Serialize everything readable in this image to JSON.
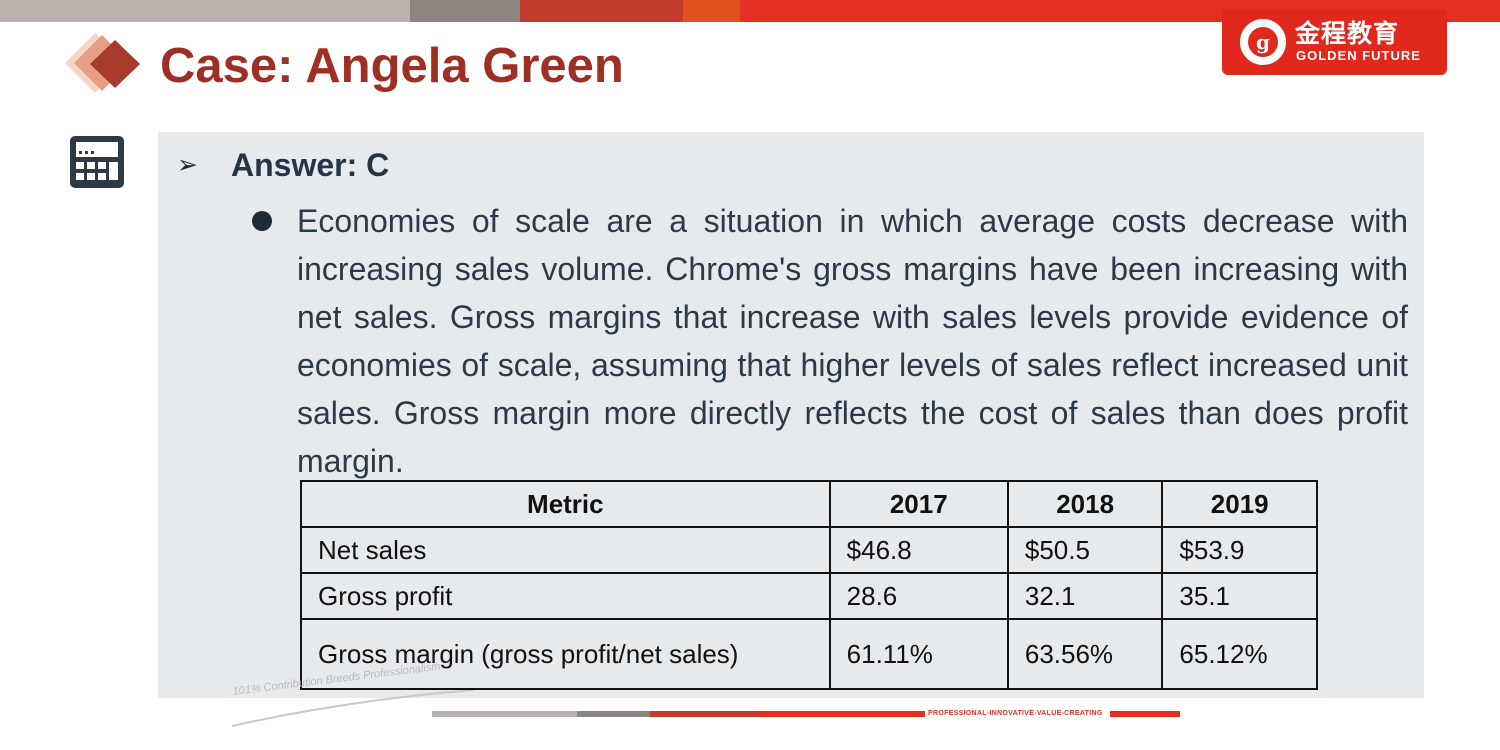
{
  "slide": {
    "title": "Case: Angela Green",
    "answer": "Answer: C",
    "paragraph": "Economies of scale are a situation in which average costs decrease with increasing sales volume. Chrome's gross margins have been increasing with net sales. Gross margins that increase with sales levels provide evidence of economies of scale, assuming that higher levels of sales reflect increased unit sales. Gross margin more directly reflects the cost of sales than does profit margin."
  },
  "logo": {
    "chinese": "金程教育",
    "english": "GOLDEN FUTURE"
  },
  "table": {
    "headers": [
      "Metric",
      "2017",
      "2018",
      "2019"
    ],
    "rows": [
      [
        "Net sales",
        "$46.8",
        "$50.5",
        "$53.9"
      ],
      [
        "Gross profit",
        "28.6",
        "32.1",
        "35.1"
      ],
      [
        "Gross margin (gross profit/net sales)",
        "61.11%",
        "63.56%",
        "65.12%"
      ]
    ]
  },
  "footer": {
    "tagline": "101% Contribution Breeds Professionalism",
    "slogan": "PROFESSIONAL-INNOVATIVE-VALUE-CREATING"
  },
  "colors": {
    "title_red": "#9e2f24",
    "brand_red": "#e0291c",
    "content_bg": "#e6eaed",
    "text_dark": "#2a3a4a"
  },
  "icons": [
    "diamond-title-icon",
    "calculator-icon",
    "arrow-bullet-icon",
    "bullet-dot-icon",
    "golden-future-seal-icon"
  ]
}
